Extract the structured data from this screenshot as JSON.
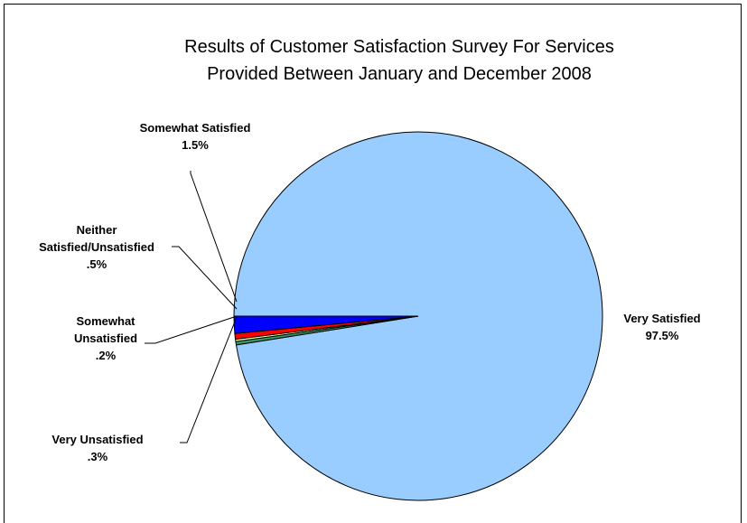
{
  "chart_data": {
    "type": "pie",
    "title": [
      "Results of Customer Satisfaction Survey For Services",
      "Provided Between January and December 2008"
    ],
    "slices": [
      {
        "label": [
          "Very Satisfied",
          "97.5%"
        ],
        "value": 97.5,
        "color": "#99CCFF"
      },
      {
        "label": [
          "Very Unsatisfied",
          ".3%"
        ],
        "value": 0.3,
        "color": "#339966"
      },
      {
        "label": [
          "Somewhat",
          "Unsatisfied",
          ".2%"
        ],
        "value": 0.2,
        "color": "#FFFF99"
      },
      {
        "label": [
          "Neither",
          "Satisfied/Unsatisfied",
          ".5%"
        ],
        "value": 0.5,
        "color": "#FF0000"
      },
      {
        "label": [
          "Somewhat Satisfied",
          "1.5%"
        ],
        "value": 1.5,
        "color": "#0000FF"
      }
    ]
  }
}
